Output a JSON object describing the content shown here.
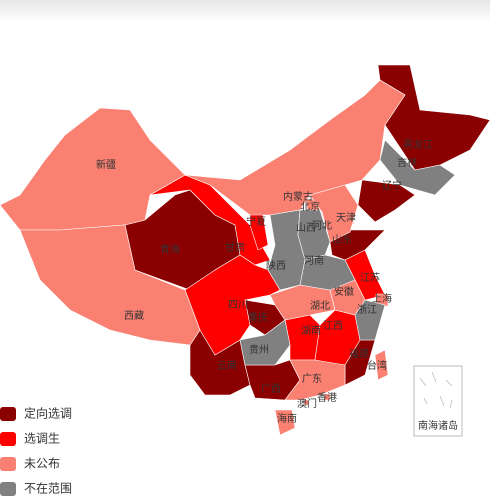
{
  "legend": {
    "items": [
      {
        "label": "定向选调",
        "color": "#8b0000",
        "regions": [
          "黑龙江",
          "辽宁",
          "青海",
          "山东",
          "重庆",
          "福建",
          "云南",
          "广西"
        ]
      },
      {
        "label": "选调生",
        "color": "#ff0000",
        "regions": [
          "甘肃",
          "宁夏",
          "四川",
          "湖南",
          "江西",
          "江苏"
        ]
      },
      {
        "label": "未公布",
        "color": "#fa8072",
        "regions": [
          "新疆",
          "西藏",
          "内蒙古",
          "北京",
          "天津",
          "河北",
          "湖北",
          "广东",
          "台湾",
          "香港",
          "澳门",
          "海南",
          "上海",
          "安徽"
        ]
      },
      {
        "label": "不在范围",
        "color": "#808080",
        "regions": [
          "吉林",
          "陕西",
          "山西",
          "河南",
          "浙江",
          "贵州"
        ]
      }
    ]
  },
  "inset": {
    "label": "南海诸岛"
  }
}
